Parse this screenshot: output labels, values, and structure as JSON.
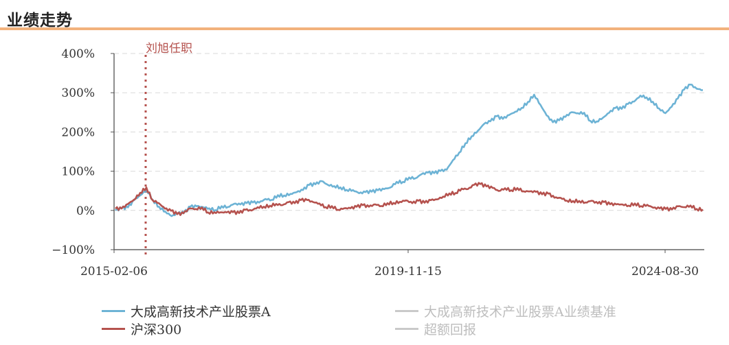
{
  "header": {
    "title": "业绩走势",
    "accent_color": "#f2b27c"
  },
  "chart_data": {
    "type": "line",
    "x_tick_labels": [
      "2015-02-06",
      "2019-11-15",
      "2024-08-30"
    ],
    "y_tick_labels": [
      "400%",
      "300%",
      "200%",
      "100%",
      "0%",
      "−100%"
    ],
    "ylim": [
      -100,
      400
    ],
    "ylabel": "",
    "xlabel": "",
    "title": "",
    "grid": "horizontal-dashed",
    "annotation": {
      "text": "刘旭任职",
      "style": "dotted-vertical-line"
    },
    "series": [
      {
        "name": "大成高新技术产业股票A",
        "color": "#6db3d5",
        "values": [
          0,
          3,
          8,
          22,
          42,
          52,
          30,
          10,
          -5,
          -14,
          -12,
          -4,
          8,
          14,
          10,
          5,
          2,
          6,
          10,
          14,
          18,
          20,
          21,
          22,
          25,
          28,
          35,
          40,
          43,
          48,
          55,
          62,
          68,
          70,
          66,
          62,
          60,
          56,
          50,
          46,
          42,
          48,
          50,
          55,
          62,
          72,
          76,
          80,
          82,
          90,
          96,
          98,
          100,
          108,
          125,
          148,
          168,
          188,
          205,
          220,
          232,
          238,
          235,
          240,
          250,
          262,
          275,
          300,
          268,
          245,
          222,
          228,
          238,
          248,
          252,
          248,
          232,
          225,
          235,
          248,
          258,
          262,
          270,
          282,
          292,
          288,
          276,
          256,
          250,
          262,
          290,
          308,
          322,
          310,
          303
        ]
      },
      {
        "name": "沪深300",
        "color": "#b5524e",
        "values": [
          0,
          5,
          14,
          28,
          48,
          58,
          30,
          15,
          5,
          -4,
          -10,
          -5,
          5,
          8,
          5,
          -4,
          -8,
          -6,
          -4,
          -5,
          -2,
          0,
          2,
          5,
          8,
          12,
          15,
          18,
          20,
          22,
          24,
          25,
          20,
          15,
          12,
          10,
          6,
          4,
          5,
          8,
          10,
          12,
          14,
          16,
          18,
          20,
          21,
          22,
          20,
          22,
          24,
          26,
          30,
          35,
          40,
          45,
          52,
          58,
          65,
          70,
          62,
          55,
          50,
          52,
          54,
          56,
          52,
          50,
          46,
          42,
          38,
          34,
          30,
          28,
          26,
          24,
          22,
          20,
          19,
          18,
          18,
          17,
          16,
          15,
          14,
          12,
          10,
          8,
          6,
          5,
          6,
          8,
          10,
          8,
          4,
          2
        ]
      },
      {
        "name": "大成高新技术产业股票A业绩基准",
        "color": "#c9c9c9",
        "values": []
      },
      {
        "name": "超额回报",
        "color": "#c9c9c9",
        "values": []
      }
    ]
  }
}
